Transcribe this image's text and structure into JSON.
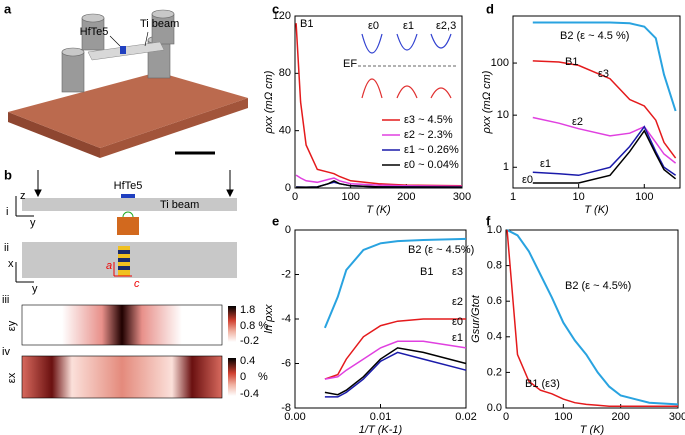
{
  "figure": {
    "a": {
      "label": "a",
      "sample": "HfTe5",
      "beam": "Ti beam"
    },
    "b": {
      "label": "b",
      "rows": [
        "i",
        "ii",
        "iii",
        "iv"
      ],
      "sample": "HfTe5",
      "beam": "Ti beam",
      "axes_i": [
        "z",
        "y"
      ],
      "axes_ii": [
        "x",
        "y"
      ],
      "crystal_axes": [
        "a",
        "c"
      ],
      "map_iii": {
        "label": "εy",
        "ticks": [
          "1.8",
          "0.8 %",
          "-0.2"
        ]
      },
      "map_iv": {
        "label": "εx",
        "ticks": [
          "0.4",
          "0",
          "-0.4"
        ],
        "unit": "%"
      }
    }
  },
  "chart_data": [
    {
      "type": "line",
      "label": "c",
      "xlabel": "T (K)",
      "ylabel": "ρxx (mΩ cm)",
      "annotations": [
        "B1",
        "ε0",
        "ε1",
        "ε2,3",
        "EF"
      ],
      "xlim": [
        0,
        300
      ],
      "xticks": [
        0,
        100,
        200,
        300
      ],
      "ylim": [
        0,
        120
      ],
      "yticks": [
        0,
        40,
        80,
        120
      ],
      "x": [
        2,
        10,
        20,
        40,
        60,
        70,
        80,
        100,
        150,
        200,
        300
      ],
      "series": [
        {
          "name": "ε3 ~ 4.5%",
          "color": "#e41a1c",
          "values": [
            115,
            60,
            30,
            13,
            11,
            10,
            8,
            5,
            3,
            2,
            1.5
          ]
        },
        {
          "name": "ε2 ~ 2.3%",
          "color": "#e040e0",
          "values": [
            9,
            7,
            5,
            4,
            6,
            7,
            5,
            3,
            2,
            1.5,
            1.2
          ]
        },
        {
          "name": "ε1 ~ 0.26%",
          "color": "#1a1aaa",
          "values": [
            0.8,
            0.7,
            0.6,
            0.8,
            3,
            4,
            3,
            1.5,
            0.8,
            0.7,
            0.6
          ]
        },
        {
          "name": "ε0 ~ 0.04%",
          "color": "#000000",
          "values": [
            0.5,
            0.5,
            0.5,
            0.7,
            3,
            5,
            3,
            1.5,
            0.8,
            0.7,
            0.6
          ]
        }
      ]
    },
    {
      "type": "line",
      "label": "d",
      "xlabel": "T (K)",
      "ylabel": "ρxx (mΩ cm)",
      "xscale": "log",
      "yscale": "log",
      "annotations": [
        "B1"
      ],
      "xlim": [
        1,
        350
      ],
      "xticks": [
        1,
        10,
        100
      ],
      "ylim": [
        0.4,
        800
      ],
      "yticks": [
        1,
        10,
        100
      ],
      "x": [
        2,
        5,
        10,
        30,
        60,
        100,
        150,
        200,
        300
      ],
      "series": [
        {
          "name": "B2 (ε ~ 4.5 %)",
          "color": "#29a3e0",
          "values": [
            600,
            600,
            600,
            600,
            580,
            500,
            300,
            60,
            12
          ]
        },
        {
          "name": "ε3",
          "color": "#e41a1c",
          "values": [
            110,
            105,
            90,
            50,
            20,
            15,
            8,
            3,
            1.5
          ]
        },
        {
          "name": "ε2",
          "color": "#e040e0",
          "values": [
            9,
            7,
            5.5,
            4,
            4.5,
            6,
            3,
            1.8,
            1.2
          ]
        },
        {
          "name": "ε1",
          "color": "#1a1aaa",
          "values": [
            0.8,
            0.75,
            0.7,
            1,
            2.5,
            6,
            2,
            1,
            0.7
          ]
        },
        {
          "name": "ε0",
          "color": "#000000",
          "values": [
            0.5,
            0.5,
            0.5,
            0.7,
            2,
            5,
            1.8,
            0.9,
            0.6
          ]
        }
      ]
    },
    {
      "type": "line",
      "label": "e",
      "xlabel": "1/T (K-1)",
      "ylabel": "ln ρxx",
      "annotations": [
        "B1"
      ],
      "xlim": [
        0,
        0.02
      ],
      "xticks": [
        {
          "value": 0,
          "label": "0.00"
        },
        0.01,
        0.02
      ],
      "ylim": [
        -8,
        0
      ],
      "yticks": [
        -8,
        -6,
        -4,
        -2,
        0
      ],
      "x": [
        0.0035,
        0.005,
        0.006,
        0.008,
        0.01,
        0.012,
        0.015,
        0.02
      ],
      "series": [
        {
          "name": "B2 (ε ~ 4.5%)",
          "color": "#29a3e0",
          "values": [
            -4.4,
            -3,
            -1.8,
            -0.9,
            -0.6,
            -0.5,
            -0.45,
            -0.4
          ]
        },
        {
          "name": "ε3",
          "color": "#e41a1c",
          "values": [
            -6.7,
            -6.5,
            -5.8,
            -4.8,
            -4.3,
            -4.1,
            -4.0,
            -4.0
          ]
        },
        {
          "name": "ε2",
          "color": "#e040e0",
          "values": [
            -6.7,
            -6.6,
            -6.3,
            -5.8,
            -5.3,
            -5.0,
            -5.0,
            -5.3
          ]
        },
        {
          "name": "ε0",
          "color": "#000000",
          "values": [
            -7.3,
            -7.4,
            -7.2,
            -6.6,
            -5.8,
            -5.3,
            -5.5,
            -6.0
          ]
        },
        {
          "name": "ε1",
          "color": "#1a1aaa",
          "values": [
            -7.5,
            -7.5,
            -7.3,
            -6.7,
            -5.9,
            -5.5,
            -5.8,
            -6.3
          ]
        }
      ]
    },
    {
      "type": "line",
      "label": "f",
      "xlabel": "T (K)",
      "ylabel": "Gsur/Gtot",
      "xlim": [
        0,
        300
      ],
      "xticks": [
        0,
        100,
        200,
        300
      ],
      "ylim": [
        0,
        1
      ],
      "yticks": [
        {
          "value": 0,
          "label": "0.0"
        },
        0.2,
        0.4,
        0.6,
        0.8,
        {
          "value": 1,
          "label": "1.0"
        }
      ],
      "x": [
        2,
        20,
        40,
        60,
        80,
        100,
        120,
        140,
        160,
        180,
        200,
        250,
        300
      ],
      "series": [
        {
          "name": "B2 (ε ~ 4.5%)",
          "color": "#29a3e0",
          "values": [
            1,
            0.97,
            0.88,
            0.75,
            0.62,
            0.48,
            0.38,
            0.3,
            0.2,
            0.12,
            0.07,
            0.03,
            0.02
          ]
        },
        {
          "name": "B1 (ε3)",
          "color": "#e41a1c",
          "values": [
            1,
            0.3,
            0.15,
            0.1,
            0.08,
            0.05,
            0.03,
            0.02,
            0.015,
            0.01,
            0.01,
            0.01,
            0.01
          ]
        }
      ]
    }
  ]
}
